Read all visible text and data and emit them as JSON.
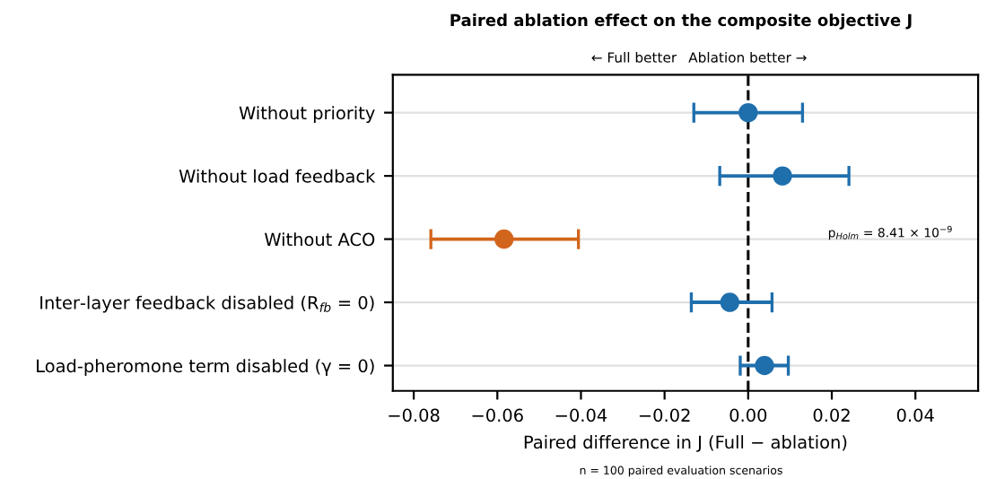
{
  "chart_data": {
    "type": "scatter",
    "orientation": "horizontal",
    "title": "Paired ablation effect on the composite objective J",
    "xlabel": "Paired difference in J (Full − ablation)",
    "categories": [
      "Without priority",
      "Without load feedback",
      "Without ACO",
      "Inter-layer feedback disabled (R$_{fb}$ = 0)",
      "Load-pheromone term disabled (γ = 0)"
    ],
    "values": [
      0.0,
      0.0082,
      -0.0584,
      -0.0044,
      0.0039
    ],
    "errors": [
      [
        -0.013,
        0.013
      ],
      [
        -0.0068,
        0.0241
      ],
      [
        -0.0759,
        -0.0406
      ],
      [
        -0.0136,
        0.0057
      ],
      [
        -0.0019,
        0.0096
      ]
    ],
    "colors": [
      "#1f6fad",
      "#1f6fad",
      "#d2651c",
      "#1f6fad",
      "#1f6fad"
    ],
    "marker": "circle",
    "xlim": [
      -0.085,
      0.055
    ],
    "xticks": [
      {
        "value": -0.08,
        "label": "−0.08"
      },
      {
        "value": -0.06,
        "label": "−0.06"
      },
      {
        "value": -0.04,
        "label": "−0.04"
      },
      {
        "value": -0.02,
        "label": "−0.02"
      },
      {
        "value": 0.0,
        "label": "0.00"
      },
      {
        "value": 0.02,
        "label": "0.02"
      },
      {
        "value": 0.04,
        "label": "0.04"
      }
    ],
    "ref_lines": [
      {
        "axis": "x",
        "value": 0,
        "color": "#000000",
        "line_style": "dashed"
      }
    ],
    "grid": "y",
    "annotations": [
      "← Full better",
      "Ablation better →",
      "p$_{Holm}$ = 8.41 × 10$^{−9}$",
      "n = 100 paired evaluation scenarios"
    ]
  }
}
